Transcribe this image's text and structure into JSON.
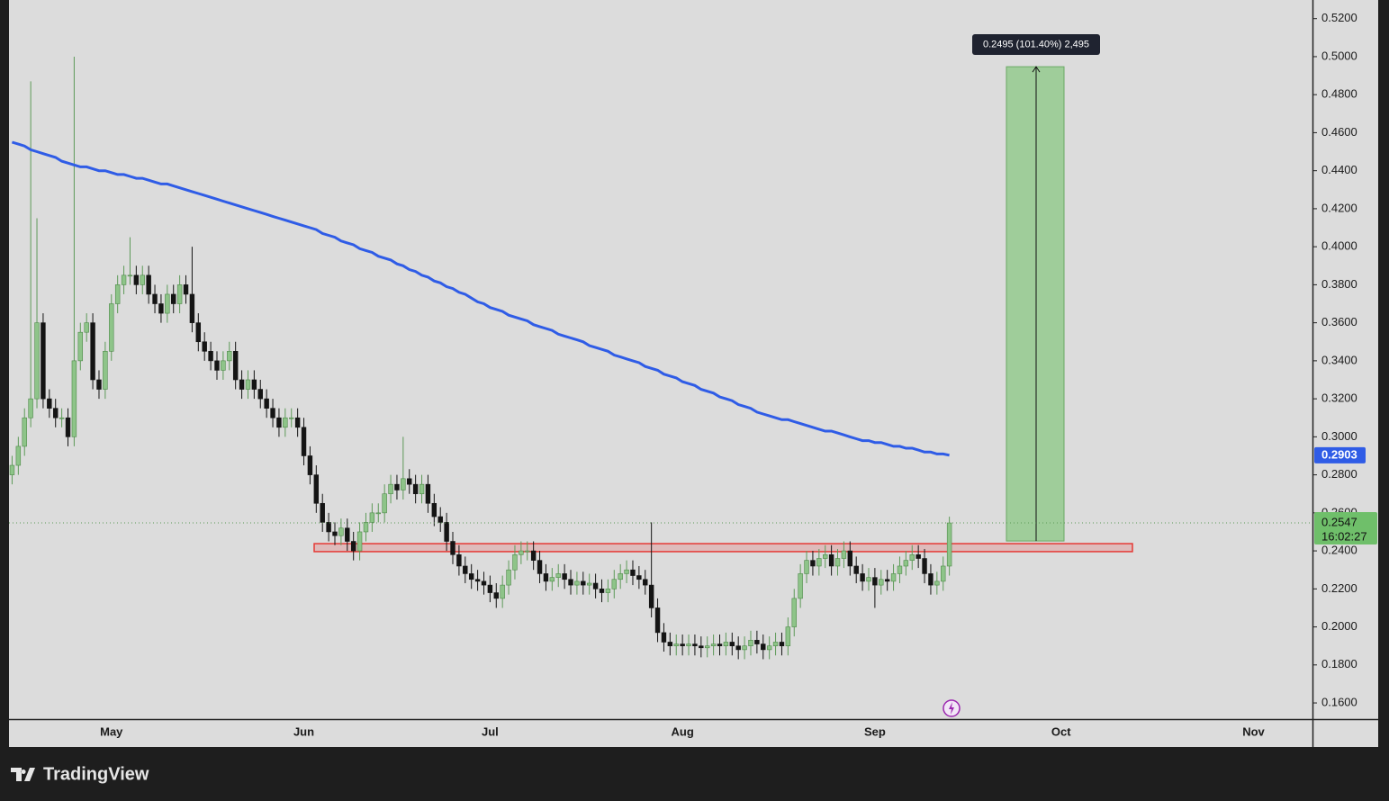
{
  "chart_data": {
    "type": "candlestick",
    "categories": [
      null,
      null,
      null,
      null,
      null,
      null,
      null,
      null,
      null,
      null,
      null,
      null,
      null,
      null,
      null,
      null,
      "May",
      null,
      null,
      null,
      null,
      null,
      null,
      null,
      null,
      null,
      null,
      null,
      null,
      null,
      null,
      null,
      null,
      null,
      null,
      null,
      null,
      null,
      null,
      null,
      null,
      null,
      null,
      null,
      null,
      null,
      null,
      "Jun",
      null,
      null,
      null,
      null,
      null,
      null,
      null,
      null,
      null,
      null,
      null,
      null,
      null,
      null,
      null,
      null,
      null,
      null,
      null,
      null,
      null,
      null,
      null,
      null,
      null,
      null,
      null,
      null,
      null,
      "Jul",
      null,
      null,
      null,
      null,
      null,
      null,
      null,
      null,
      null,
      null,
      null,
      null,
      null,
      null,
      null,
      null,
      null,
      null,
      null,
      null,
      null,
      null,
      null,
      null,
      null,
      null,
      null,
      null,
      null,
      null,
      "Aug",
      null,
      null,
      null,
      null,
      null,
      null,
      null,
      null,
      null,
      null,
      null,
      null,
      null,
      null,
      null,
      null,
      null,
      null,
      null,
      null,
      null,
      null,
      null,
      null,
      null,
      null,
      null,
      null,
      null,
      null,
      "Sep",
      null,
      null,
      null,
      null,
      null,
      null,
      null,
      null,
      null,
      null,
      null,
      null,
      null,
      null,
      null,
      null,
      null,
      null,
      null,
      null,
      null,
      null,
      null,
      null,
      null,
      null,
      null,
      null,
      null,
      "Oct",
      null,
      null,
      null,
      null,
      null,
      null,
      null,
      null,
      null,
      null,
      null,
      null,
      null,
      null,
      null,
      null,
      null,
      null,
      null,
      null,
      null,
      null,
      null,
      null,
      null,
      null,
      null,
      null,
      null,
      null,
      "Nov",
      null,
      null,
      null,
      null,
      null,
      null,
      null,
      null,
      null
    ],
    "open": [
      0.28,
      0.285,
      0.295,
      0.31,
      0.32,
      0.36,
      0.32,
      0.315,
      0.31,
      0.31,
      0.3,
      0.34,
      0.355,
      0.36,
      0.33,
      0.325,
      0.345,
      0.37,
      0.38,
      0.385,
      0.385,
      0.38,
      0.385,
      0.375,
      0.37,
      0.365,
      0.375,
      0.37,
      0.38,
      0.375,
      0.36,
      0.35,
      0.345,
      0.34,
      0.335,
      0.34,
      0.345,
      0.33,
      0.325,
      0.33,
      0.325,
      0.32,
      0.315,
      0.31,
      0.305,
      0.31,
      0.31,
      0.305,
      0.29,
      0.28,
      0.265,
      0.255,
      0.25,
      0.248,
      0.252,
      0.245,
      0.24,
      0.25,
      0.255,
      0.26,
      0.26,
      0.27,
      0.275,
      0.272,
      0.278,
      0.275,
      0.27,
      0.275,
      0.265,
      0.258,
      0.255,
      0.245,
      0.238,
      0.232,
      0.228,
      0.225,
      0.224,
      0.222,
      0.218,
      0.215,
      0.222,
      0.23,
      0.238,
      0.24,
      0.24,
      0.235,
      0.228,
      0.224,
      0.226,
      0.228,
      0.225,
      0.222,
      0.224,
      0.222,
      0.223,
      0.22,
      0.218,
      0.22,
      0.225,
      0.228,
      0.23,
      0.227,
      0.225,
      0.222,
      0.21,
      0.197,
      0.192,
      0.19,
      0.191,
      0.19,
      0.191,
      0.19,
      0.189,
      0.19,
      0.191,
      0.19,
      0.192,
      0.19,
      0.188,
      0.19,
      0.193,
      0.191,
      0.188,
      0.19,
      0.192,
      0.19,
      0.2,
      0.215,
      0.228,
      0.235,
      0.232,
      0.236,
      0.238,
      0.232,
      0.236,
      0.24,
      0.232,
      0.228,
      0.224,
      0.226,
      0.222,
      0.225,
      0.224,
      0.228,
      0.232,
      0.235,
      0.238,
      0.236,
      0.228,
      0.222,
      0.224,
      0.232,
      null,
      null,
      null,
      null,
      null,
      null,
      null,
      null,
      null,
      null,
      null,
      null,
      null,
      null,
      null,
      null,
      null,
      null,
      null,
      null,
      null,
      null,
      null,
      null,
      null,
      null,
      null,
      null,
      null,
      null,
      null,
      null,
      null,
      null,
      null,
      null,
      null,
      null,
      null,
      null,
      null,
      null,
      null,
      null,
      null,
      null,
      null,
      null,
      null,
      null,
      null,
      null,
      null,
      null,
      null,
      null,
      null,
      null
    ],
    "high": [
      0.29,
      0.3,
      0.315,
      0.487,
      0.415,
      0.365,
      0.325,
      0.32,
      0.315,
      0.315,
      0.5,
      0.36,
      0.365,
      0.365,
      0.335,
      0.35,
      0.375,
      0.385,
      0.39,
      0.405,
      0.39,
      0.39,
      0.39,
      0.38,
      0.375,
      0.38,
      0.38,
      0.385,
      0.385,
      0.4,
      0.365,
      0.355,
      0.35,
      0.345,
      0.345,
      0.35,
      0.35,
      0.335,
      0.335,
      0.335,
      0.33,
      0.325,
      0.32,
      0.315,
      0.315,
      0.315,
      0.315,
      0.31,
      0.295,
      0.285,
      0.27,
      0.26,
      0.255,
      0.257,
      0.257,
      0.25,
      0.255,
      0.26,
      0.265,
      0.265,
      0.275,
      0.28,
      0.28,
      0.3,
      0.283,
      0.28,
      0.28,
      0.28,
      0.27,
      0.263,
      0.26,
      0.25,
      0.243,
      0.237,
      0.233,
      0.23,
      0.229,
      0.227,
      0.223,
      0.227,
      0.235,
      0.243,
      0.245,
      0.245,
      0.245,
      0.24,
      0.233,
      0.231,
      0.233,
      0.233,
      0.23,
      0.229,
      0.229,
      0.228,
      0.228,
      0.225,
      0.225,
      0.23,
      0.233,
      0.235,
      0.235,
      0.232,
      0.23,
      0.255,
      0.215,
      0.202,
      0.197,
      0.196,
      0.196,
      0.196,
      0.196,
      0.195,
      0.195,
      0.196,
      0.196,
      0.197,
      0.197,
      0.195,
      0.195,
      0.198,
      0.198,
      0.196,
      0.195,
      0.197,
      0.197,
      0.205,
      0.22,
      0.233,
      0.24,
      0.24,
      0.241,
      0.243,
      0.243,
      0.241,
      0.245,
      0.245,
      0.237,
      0.233,
      0.231,
      0.231,
      0.23,
      0.23,
      0.233,
      0.237,
      0.24,
      0.243,
      0.243,
      0.241,
      0.233,
      0.229,
      0.237,
      0.258,
      null,
      null,
      null,
      null,
      null,
      null,
      null,
      null,
      null,
      null,
      null,
      null,
      null,
      null,
      null,
      null,
      null,
      null,
      null,
      null,
      null,
      null,
      null,
      null,
      null,
      null,
      null,
      null,
      null,
      null,
      null,
      null,
      null,
      null,
      null,
      null,
      null,
      null,
      null,
      null,
      null,
      null,
      null,
      null,
      null,
      null,
      null,
      null,
      null,
      null,
      null,
      null,
      null,
      null,
      null,
      null,
      null,
      null
    ],
    "low": [
      0.275,
      0.28,
      0.29,
      0.305,
      0.315,
      0.315,
      0.31,
      0.305,
      0.305,
      0.295,
      0.295,
      0.335,
      0.35,
      0.325,
      0.32,
      0.32,
      0.34,
      0.365,
      0.375,
      0.38,
      0.375,
      0.375,
      0.37,
      0.365,
      0.36,
      0.36,
      0.365,
      0.365,
      0.37,
      0.355,
      0.345,
      0.34,
      0.335,
      0.33,
      0.33,
      0.335,
      0.325,
      0.32,
      0.32,
      0.32,
      0.315,
      0.31,
      0.305,
      0.3,
      0.3,
      0.305,
      0.3,
      0.285,
      0.275,
      0.26,
      0.25,
      0.245,
      0.243,
      0.243,
      0.24,
      0.235,
      0.235,
      0.245,
      0.25,
      0.255,
      0.255,
      0.265,
      0.267,
      0.267,
      0.27,
      0.265,
      0.265,
      0.26,
      0.253,
      0.25,
      0.24,
      0.233,
      0.227,
      0.223,
      0.22,
      0.219,
      0.217,
      0.213,
      0.21,
      0.21,
      0.217,
      0.225,
      0.233,
      0.235,
      0.23,
      0.223,
      0.219,
      0.219,
      0.221,
      0.22,
      0.217,
      0.217,
      0.217,
      0.217,
      0.215,
      0.213,
      0.213,
      0.215,
      0.22,
      0.223,
      0.222,
      0.22,
      0.217,
      0.205,
      0.192,
      0.187,
      0.185,
      0.185,
      0.185,
      0.185,
      0.185,
      0.184,
      0.184,
      0.185,
      0.185,
      0.185,
      0.185,
      0.183,
      0.183,
      0.185,
      0.186,
      0.183,
      0.183,
      0.185,
      0.185,
      0.185,
      0.195,
      0.21,
      0.223,
      0.227,
      0.227,
      0.231,
      0.227,
      0.227,
      0.231,
      0.227,
      0.223,
      0.219,
      0.219,
      0.21,
      0.217,
      0.219,
      0.219,
      0.223,
      0.227,
      0.23,
      0.231,
      0.223,
      0.217,
      0.217,
      0.219,
      0.227,
      null,
      null,
      null,
      null,
      null,
      null,
      null,
      null,
      null,
      null,
      null,
      null,
      null,
      null,
      null,
      null,
      null,
      null,
      null,
      null,
      null,
      null,
      null,
      null,
      null,
      null,
      null,
      null,
      null,
      null,
      null,
      null,
      null,
      null,
      null,
      null,
      null,
      null,
      null,
      null,
      null,
      null,
      null,
      null,
      null,
      null,
      null,
      null,
      null,
      null,
      null,
      null,
      null,
      null,
      null,
      null,
      null,
      null
    ],
    "close": [
      0.285,
      0.295,
      0.31,
      0.32,
      0.36,
      0.32,
      0.315,
      0.31,
      0.31,
      0.3,
      0.34,
      0.355,
      0.36,
      0.33,
      0.325,
      0.345,
      0.37,
      0.38,
      0.385,
      0.385,
      0.38,
      0.385,
      0.375,
      0.37,
      0.365,
      0.375,
      0.37,
      0.38,
      0.375,
      0.36,
      0.35,
      0.345,
      0.34,
      0.335,
      0.34,
      0.345,
      0.33,
      0.325,
      0.33,
      0.325,
      0.32,
      0.315,
      0.31,
      0.305,
      0.31,
      0.31,
      0.305,
      0.29,
      0.28,
      0.265,
      0.255,
      0.25,
      0.248,
      0.252,
      0.245,
      0.24,
      0.25,
      0.255,
      0.26,
      0.26,
      0.27,
      0.275,
      0.272,
      0.278,
      0.275,
      0.27,
      0.275,
      0.265,
      0.258,
      0.255,
      0.245,
      0.238,
      0.232,
      0.228,
      0.225,
      0.224,
      0.222,
      0.218,
      0.215,
      0.222,
      0.23,
      0.238,
      0.24,
      0.24,
      0.235,
      0.228,
      0.224,
      0.226,
      0.228,
      0.225,
      0.222,
      0.224,
      0.222,
      0.223,
      0.22,
      0.218,
      0.22,
      0.225,
      0.228,
      0.23,
      0.227,
      0.225,
      0.222,
      0.21,
      0.197,
      0.192,
      0.19,
      0.191,
      0.19,
      0.191,
      0.19,
      0.189,
      0.19,
      0.191,
      0.19,
      0.192,
      0.19,
      0.188,
      0.19,
      0.193,
      0.191,
      0.188,
      0.19,
      0.192,
      0.19,
      0.2,
      0.215,
      0.228,
      0.235,
      0.232,
      0.236,
      0.238,
      0.232,
      0.236,
      0.24,
      0.232,
      0.228,
      0.224,
      0.226,
      0.222,
      0.225,
      0.224,
      0.228,
      0.232,
      0.235,
      0.238,
      0.236,
      0.228,
      0.222,
      0.224,
      0.232,
      0.2547,
      null,
      null,
      null,
      null,
      null,
      null,
      null,
      null,
      null,
      null,
      null,
      null,
      null,
      null,
      null,
      null,
      null,
      null,
      null,
      null,
      null,
      null,
      null,
      null,
      null,
      null,
      null,
      null,
      null,
      null,
      null,
      null,
      null,
      null,
      null,
      null,
      null,
      null,
      null,
      null,
      null,
      null,
      null,
      null,
      null,
      null,
      null,
      null,
      null,
      null,
      null,
      null,
      null,
      null,
      null,
      null,
      null,
      null
    ],
    "up_color": "#8ec489",
    "down_color": "#141414",
    "ma": {
      "color": "#2f5ce6",
      "values": [
        0.455,
        0.454,
        0.453,
        0.451,
        0.45,
        0.449,
        0.448,
        0.447,
        0.445,
        0.444,
        0.443,
        0.442,
        0.442,
        0.441,
        0.44,
        0.44,
        0.439,
        0.438,
        0.438,
        0.437,
        0.436,
        0.436,
        0.435,
        0.434,
        0.433,
        0.433,
        0.432,
        0.431,
        0.43,
        0.429,
        0.428,
        0.427,
        0.426,
        0.425,
        0.424,
        0.423,
        0.422,
        0.421,
        0.42,
        0.419,
        0.418,
        0.417,
        0.416,
        0.415,
        0.414,
        0.413,
        0.412,
        0.411,
        0.41,
        0.409,
        0.407,
        0.406,
        0.405,
        0.403,
        0.402,
        0.401,
        0.399,
        0.398,
        0.397,
        0.395,
        0.394,
        0.393,
        0.391,
        0.39,
        0.388,
        0.387,
        0.385,
        0.384,
        0.382,
        0.381,
        0.379,
        0.378,
        0.376,
        0.375,
        0.373,
        0.371,
        0.37,
        0.368,
        0.367,
        0.366,
        0.364,
        0.363,
        0.362,
        0.361,
        0.359,
        0.358,
        0.357,
        0.356,
        0.354,
        0.353,
        0.352,
        0.351,
        0.35,
        0.348,
        0.347,
        0.346,
        0.345,
        0.343,
        0.342,
        0.341,
        0.34,
        0.339,
        0.337,
        0.336,
        0.335,
        0.333,
        0.332,
        0.331,
        0.329,
        0.328,
        0.327,
        0.325,
        0.324,
        0.323,
        0.321,
        0.32,
        0.319,
        0.317,
        0.316,
        0.315,
        0.313,
        0.312,
        0.311,
        0.31,
        0.309,
        0.309,
        0.308,
        0.307,
        0.306,
        0.305,
        0.304,
        0.303,
        0.303,
        0.302,
        0.301,
        0.3,
        0.299,
        0.298,
        0.298,
        0.297,
        0.297,
        0.296,
        0.295,
        0.295,
        0.294,
        0.294,
        0.293,
        0.292,
        0.292,
        0.291,
        0.291,
        0.2903,
        null,
        null,
        null,
        null,
        null,
        null,
        null,
        null,
        null,
        null,
        null,
        null,
        null,
        null,
        null,
        null,
        null,
        null,
        null,
        null,
        null,
        null,
        null,
        null,
        null,
        null,
        null,
        null,
        null,
        null,
        null,
        null,
        null,
        null,
        null,
        null,
        null,
        null,
        null,
        null,
        null,
        null,
        null,
        null,
        null,
        null,
        null,
        null,
        null,
        null,
        null,
        null,
        null,
        null,
        null,
        null,
        null,
        null
      ]
    },
    "ylim": [
      0.1515,
      0.5298
    ],
    "yticks": [
      {
        "value": 0.16,
        "label": "0.1600"
      },
      {
        "value": 0.18,
        "label": "0.1800"
      },
      {
        "value": 0.2,
        "label": "0.2000"
      },
      {
        "value": 0.22,
        "label": "0.2200"
      },
      {
        "value": 0.24,
        "label": "0.2400"
      },
      {
        "value": 0.26,
        "label": "0.2600"
      },
      {
        "value": 0.28,
        "label": "0.2800"
      },
      {
        "value": 0.3,
        "label": "0.3000"
      },
      {
        "value": 0.32,
        "label": "0.3200"
      },
      {
        "value": 0.34,
        "label": "0.3400"
      },
      {
        "value": 0.36,
        "label": "0.3600"
      },
      {
        "value": 0.38,
        "label": "0.3800"
      },
      {
        "value": 0.4,
        "label": "0.4000"
      },
      {
        "value": 0.42,
        "label": "0.4200"
      },
      {
        "value": 0.44,
        "label": "0.4400"
      },
      {
        "value": 0.46,
        "label": "0.4600"
      },
      {
        "value": 0.48,
        "label": "0.4800"
      },
      {
        "value": 0.5,
        "label": "0.5000"
      },
      {
        "value": 0.52,
        "label": "0.5200"
      }
    ],
    "countdown": "16:02:27",
    "support_zone": {
      "low": 0.2396,
      "high": 0.2438,
      "color": "#e53935"
    },
    "projection": {
      "from": 0.2452,
      "to": 0.4947,
      "label": "0.2495 (101.40%) 2,495",
      "color": "#9fcd9a"
    }
  },
  "brand": "TradingView"
}
